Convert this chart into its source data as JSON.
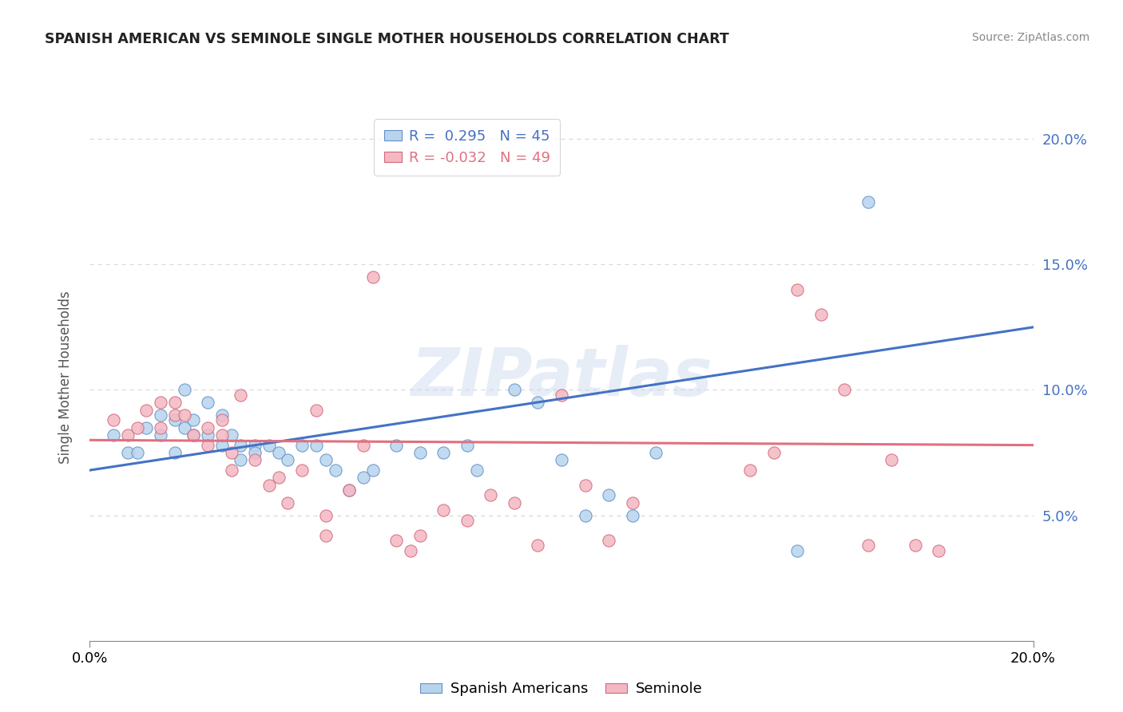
{
  "title": "SPANISH AMERICAN VS SEMINOLE SINGLE MOTHER HOUSEHOLDS CORRELATION CHART",
  "source": "Source: ZipAtlas.com",
  "ylabel": "Single Mother Households",
  "xlim": [
    0.0,
    0.2
  ],
  "ylim": [
    0.0,
    0.21
  ],
  "yticks": [
    0.05,
    0.1,
    0.15,
    0.2
  ],
  "ytick_labels": [
    "5.0%",
    "10.0%",
    "15.0%",
    "20.0%"
  ],
  "xtick_labels": [
    "0.0%",
    "20.0%"
  ],
  "legend_blue": "R =  0.295   N = 45",
  "legend_pink": "R = -0.032   N = 49",
  "watermark_text": "ZIPatlas",
  "blue_fill": "#b8d4ed",
  "blue_edge": "#6090c8",
  "pink_fill": "#f4b8c4",
  "pink_edge": "#d06878",
  "blue_line_color": "#4472c4",
  "pink_line_color": "#e07080",
  "blue_scatter": [
    [
      0.005,
      0.082
    ],
    [
      0.008,
      0.075
    ],
    [
      0.01,
      0.075
    ],
    [
      0.012,
      0.085
    ],
    [
      0.015,
      0.09
    ],
    [
      0.015,
      0.082
    ],
    [
      0.018,
      0.088
    ],
    [
      0.018,
      0.075
    ],
    [
      0.02,
      0.1
    ],
    [
      0.02,
      0.085
    ],
    [
      0.022,
      0.088
    ],
    [
      0.022,
      0.082
    ],
    [
      0.025,
      0.095
    ],
    [
      0.025,
      0.082
    ],
    [
      0.028,
      0.09
    ],
    [
      0.028,
      0.078
    ],
    [
      0.03,
      0.082
    ],
    [
      0.032,
      0.078
    ],
    [
      0.032,
      0.072
    ],
    [
      0.035,
      0.078
    ],
    [
      0.035,
      0.075
    ],
    [
      0.038,
      0.078
    ],
    [
      0.04,
      0.075
    ],
    [
      0.042,
      0.072
    ],
    [
      0.045,
      0.078
    ],
    [
      0.048,
      0.078
    ],
    [
      0.05,
      0.072
    ],
    [
      0.052,
      0.068
    ],
    [
      0.055,
      0.06
    ],
    [
      0.058,
      0.065
    ],
    [
      0.06,
      0.068
    ],
    [
      0.065,
      0.078
    ],
    [
      0.07,
      0.075
    ],
    [
      0.075,
      0.075
    ],
    [
      0.08,
      0.078
    ],
    [
      0.082,
      0.068
    ],
    [
      0.09,
      0.1
    ],
    [
      0.095,
      0.095
    ],
    [
      0.1,
      0.072
    ],
    [
      0.105,
      0.05
    ],
    [
      0.11,
      0.058
    ],
    [
      0.115,
      0.05
    ],
    [
      0.12,
      0.075
    ],
    [
      0.15,
      0.036
    ],
    [
      0.165,
      0.175
    ]
  ],
  "pink_scatter": [
    [
      0.005,
      0.088
    ],
    [
      0.008,
      0.082
    ],
    [
      0.01,
      0.085
    ],
    [
      0.012,
      0.092
    ],
    [
      0.015,
      0.095
    ],
    [
      0.015,
      0.085
    ],
    [
      0.018,
      0.09
    ],
    [
      0.018,
      0.095
    ],
    [
      0.02,
      0.09
    ],
    [
      0.022,
      0.082
    ],
    [
      0.025,
      0.085
    ],
    [
      0.025,
      0.078
    ],
    [
      0.028,
      0.088
    ],
    [
      0.028,
      0.082
    ],
    [
      0.03,
      0.075
    ],
    [
      0.03,
      0.068
    ],
    [
      0.032,
      0.098
    ],
    [
      0.035,
      0.072
    ],
    [
      0.038,
      0.062
    ],
    [
      0.04,
      0.065
    ],
    [
      0.042,
      0.055
    ],
    [
      0.045,
      0.068
    ],
    [
      0.048,
      0.092
    ],
    [
      0.05,
      0.05
    ],
    [
      0.05,
      0.042
    ],
    [
      0.055,
      0.06
    ],
    [
      0.058,
      0.078
    ],
    [
      0.06,
      0.145
    ],
    [
      0.065,
      0.04
    ],
    [
      0.068,
      0.036
    ],
    [
      0.07,
      0.042
    ],
    [
      0.075,
      0.052
    ],
    [
      0.08,
      0.048
    ],
    [
      0.085,
      0.058
    ],
    [
      0.09,
      0.055
    ],
    [
      0.095,
      0.038
    ],
    [
      0.1,
      0.098
    ],
    [
      0.105,
      0.062
    ],
    [
      0.11,
      0.04
    ],
    [
      0.115,
      0.055
    ],
    [
      0.14,
      0.068
    ],
    [
      0.145,
      0.075
    ],
    [
      0.15,
      0.14
    ],
    [
      0.155,
      0.13
    ],
    [
      0.16,
      0.1
    ],
    [
      0.165,
      0.038
    ],
    [
      0.17,
      0.072
    ],
    [
      0.175,
      0.038
    ],
    [
      0.18,
      0.036
    ]
  ],
  "blue_line_x": [
    0.0,
    0.2
  ],
  "blue_line_y": [
    0.068,
    0.125
  ],
  "pink_line_x": [
    0.0,
    0.2
  ],
  "pink_line_y": [
    0.08,
    0.078
  ],
  "grid_color": "#d8d8d8",
  "bg_color": "#ffffff",
  "title_color": "#222222",
  "source_color": "#888888",
  "ylabel_color": "#555555",
  "right_tick_color": "#4472c4",
  "legend_frame_color": "#cccccc"
}
